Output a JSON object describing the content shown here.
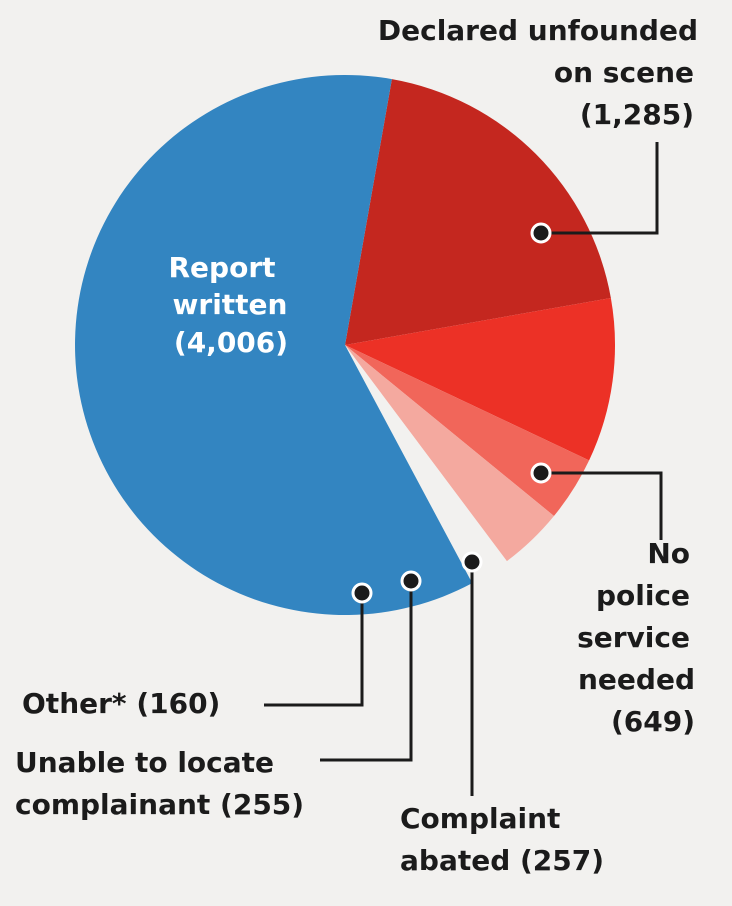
{
  "chart_data": {
    "type": "pie",
    "slices": [
      {
        "name": "Report written",
        "value": 4006,
        "value_text": "(4,006)",
        "color": "#3385c1"
      },
      {
        "name": "Declared unfounded on scene",
        "value": 1285,
        "value_text": "(1,285)",
        "color": "#c4271f"
      },
      {
        "name": "No police service needed",
        "value": 649,
        "value_text": "(649)",
        "color": "#ec3126"
      },
      {
        "name": "Complaint abated",
        "value": 257,
        "value_text": "(257)",
        "color": "#f1665a"
      },
      {
        "name": "Unable to locate complainant",
        "value": 255,
        "value_text": "(255)",
        "color": "#f4a99f"
      },
      {
        "name": "Other*",
        "value": 160,
        "value_text": "(160)",
        "color": "#f2f1ef"
      }
    ]
  }
}
